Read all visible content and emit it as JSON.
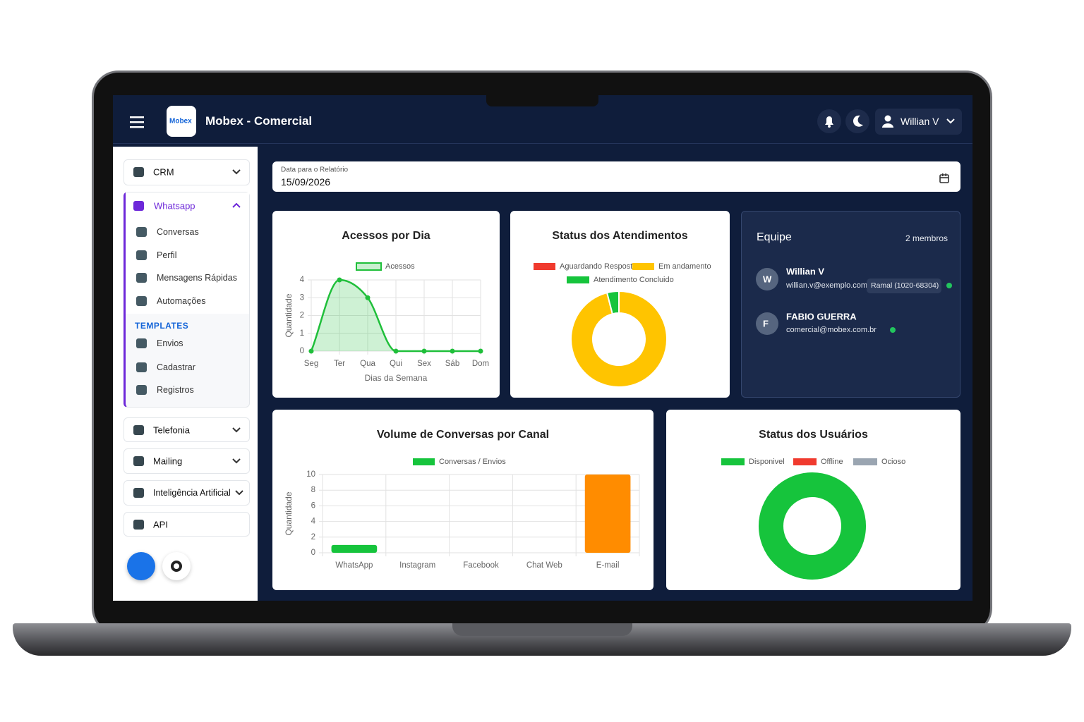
{
  "header": {
    "logo": "Mobex",
    "title": "Mobex - Comercial",
    "user": "Willian V"
  },
  "report_date": {
    "label": "Data para o Relatório",
    "value": "15/09/2026"
  },
  "sidebar": {
    "crm": "CRM",
    "whatsapp": {
      "label": "Whatsapp",
      "items": [
        "Conversas",
        "Perfil",
        "Mensagens Rápidas",
        "Automações"
      ],
      "templates_heading": "TEMPLATES",
      "templates": [
        "Envios",
        "Cadastrar",
        "Registros"
      ]
    },
    "menu": [
      "Telefonia",
      "Mailing",
      "Inteligência Artificial",
      "API"
    ]
  },
  "team": {
    "title": "Equipe",
    "count": "2 membros",
    "members": [
      {
        "initial": "W",
        "name": "Willian V",
        "email": "willian.v@exemplo.com",
        "extension": "Ramal (1020-68304)"
      },
      {
        "initial": "F",
        "name": "FABIO GUERRA",
        "email": "comercial@mobex.com.br"
      }
    ]
  },
  "chart_data": [
    {
      "type": "line",
      "title": "Acessos por Dia",
      "xlabel": "Dias da Semana",
      "ylabel": "Quantidade",
      "categories": [
        "Seg",
        "Ter",
        "Qua",
        "Qui",
        "Sex",
        "Sáb",
        "Dom"
      ],
      "series": [
        {
          "name": "Acessos",
          "color": "#1fbf3a",
          "values": [
            0,
            4,
            3,
            0,
            0,
            0,
            0
          ]
        }
      ],
      "ylim": [
        0,
        4
      ],
      "yticks": [
        0,
        1,
        2,
        3,
        4
      ],
      "grid": true
    },
    {
      "type": "doughnut",
      "title": "Status dos Atendimentos",
      "categories": [
        "Aguardando Resposta",
        "Em andamento",
        "Atendimento Concluido"
      ],
      "values": [
        0,
        24,
        1
      ],
      "colors": [
        "#f03a2e",
        "#ffc400",
        "#16c43c"
      ]
    },
    {
      "type": "bar",
      "title": "Volume de Conversas por Canal",
      "ylabel": "Quantidade",
      "categories": [
        "WhatsApp",
        "Instagram",
        "Facebook",
        "Chat Web",
        "E-mail"
      ],
      "series": [
        {
          "name": "Conversas / Envios",
          "color": "#16c43c",
          "colors": [
            "#16c43c",
            "#16c43c",
            "#16c43c",
            "#16c43c",
            "#ff8c00"
          ],
          "values": [
            1,
            0,
            0,
            0,
            10
          ]
        }
      ],
      "ylim": [
        0,
        10
      ],
      "yticks": [
        0,
        2,
        4,
        6,
        8,
        10
      ],
      "grid": true
    },
    {
      "type": "doughnut",
      "title": "Status dos Usuários",
      "categories": [
        "Disponivel",
        "Offline",
        "Ocioso"
      ],
      "values": [
        2,
        0,
        0
      ],
      "colors": [
        "#16c43c",
        "#f03a2e",
        "#9aa5b1"
      ]
    }
  ]
}
